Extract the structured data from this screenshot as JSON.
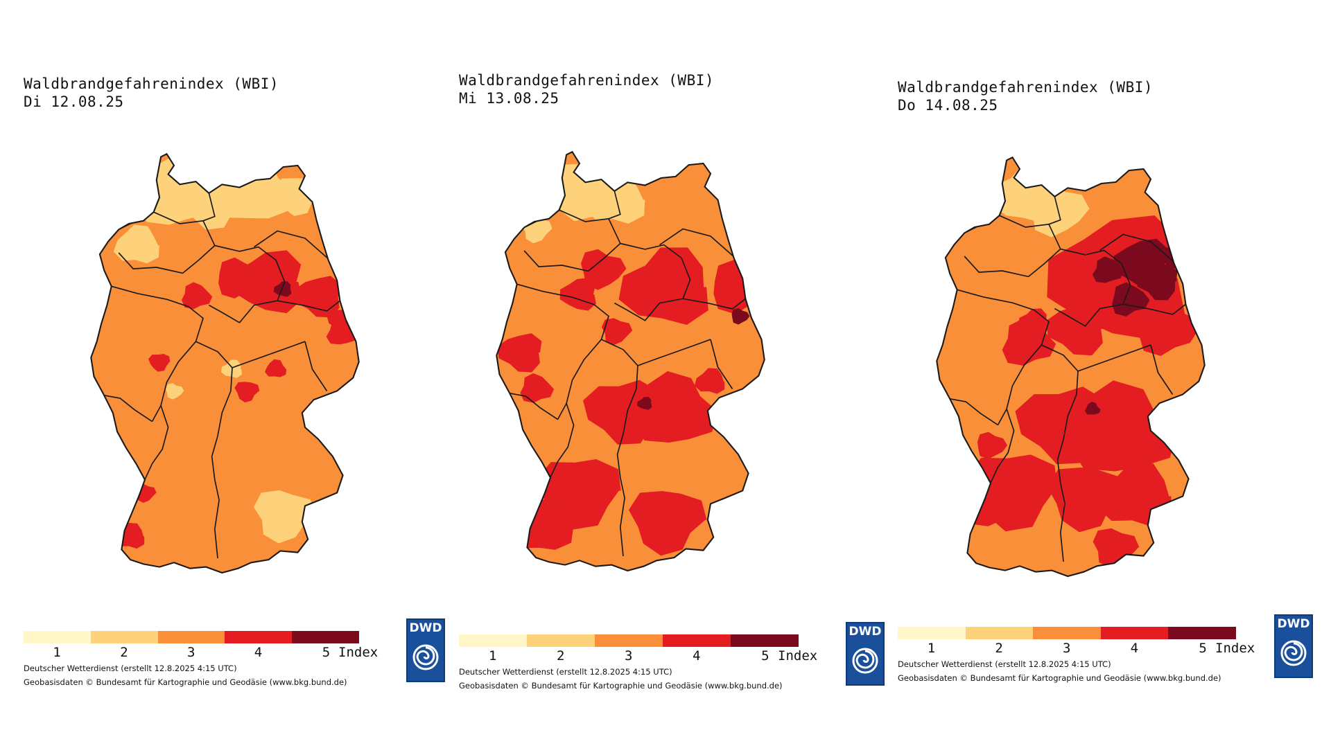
{
  "panels": [
    {
      "title": "Waldbrandgefahrenindex (WBI)",
      "date": "Di 12.08.25",
      "level": 1
    },
    {
      "title": "Waldbrandgefahrenindex (WBI)",
      "date": "Mi 13.08.25",
      "level": 2
    },
    {
      "title": "Waldbrandgefahrenindex (WBI)",
      "date": "Do 14.08.25",
      "level": 3
    }
  ],
  "legend": {
    "labels": [
      "1",
      "2",
      "3",
      "4",
      "5"
    ],
    "unit": "Index",
    "colors": [
      "#fff7c8",
      "#fdd27a",
      "#f98f38",
      "#e31d22",
      "#7c0a1e"
    ]
  },
  "credits": {
    "line1": "Deutscher Wetterdienst (erstellt 12.8.2025 4:15 UTC)",
    "line2": "Geobasisdaten © Bundesamt für Kartographie und Geodäsie (www.bkg.bund.de)"
  },
  "logo": {
    "text": "DWD",
    "icon": "dwd-swirl-icon"
  },
  "colors": {
    "border": "#1a1a1a",
    "logo_blue": "#1a4f9c"
  }
}
